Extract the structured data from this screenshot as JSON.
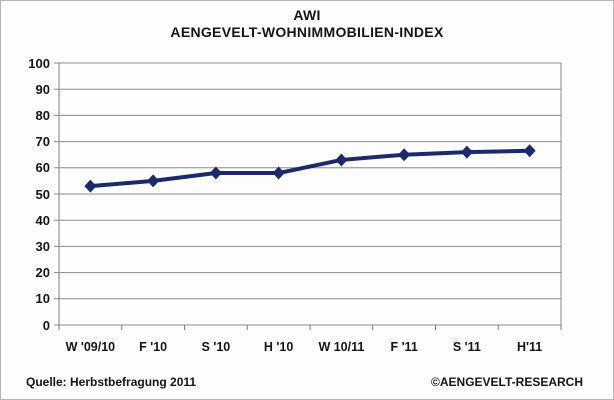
{
  "title": {
    "line1": "AWI",
    "line2": "AENGEVELT-WOHNIMMOBILIEN-INDEX"
  },
  "footer": {
    "source": "Quelle: Herbstbefragung 2011",
    "copyright": "©AENGEVELT-RESEARCH"
  },
  "colors": {
    "line": "#1b2a6b",
    "grid": "#8c8c8c",
    "axis": "#7d7d7d",
    "text": "#151515",
    "background": "#fdfdfd",
    "frame_border": "#b5b5b5"
  },
  "chart_data": {
    "type": "line",
    "title": "AWI AENGEVELT-WOHNIMMOBILIEN-INDEX",
    "categories": [
      "W '09/10",
      "F '10",
      "S '10",
      "H '10",
      "W 10/11",
      "F '11",
      "S '11",
      "H'11"
    ],
    "values": [
      53,
      55,
      58,
      58,
      63,
      65,
      66,
      66.5
    ],
    "xlabel": "",
    "ylabel": "",
    "ylim": [
      0,
      100
    ],
    "ytick_step": 10,
    "grid": true,
    "legend": "none",
    "marker": "diamond",
    "line_color": "#1b2a6b",
    "gridline_color": "#8c8c8c"
  }
}
